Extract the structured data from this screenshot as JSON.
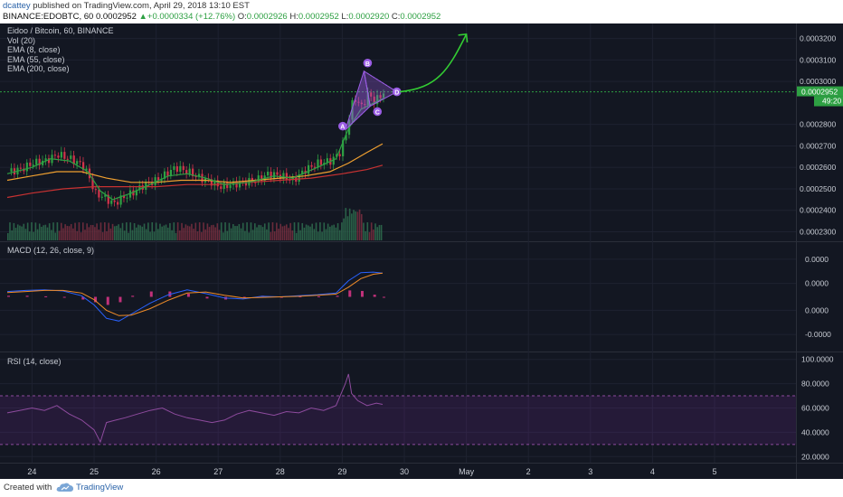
{
  "header": {
    "author": "dcattey",
    "published_text": "published on TradingView.com, April 29, 2018 13:10 EST",
    "symbol_line": "BINANCE:EDOBTC, 60",
    "last_price": "0.0002952",
    "change": "+0.0000334 (+12.76%)",
    "up_glyph": "▲",
    "o_label": "O:",
    "o_value": "0.0002926",
    "h_label": "H:",
    "h_value": "0.0002952",
    "l_label": "L:",
    "l_value": "0.0002920",
    "c_label": "C:",
    "c_value": "0.0002952"
  },
  "legend": {
    "main": [
      "Eidoo / Bitcoin, 60, BINANCE",
      "Vol (20)",
      "EMA (8, close)",
      "EMA (55, close)",
      "EMA (200, close)"
    ],
    "macd": "MACD (12, 26, close, 9)",
    "rsi": "RSI (14, close)"
  },
  "colors": {
    "background": "#131722",
    "bull": "#2ea043",
    "bear": "#d2334a",
    "ema8": "#2ea043",
    "ema55": "#f0a030",
    "ema200": "#c83232",
    "macd_line": "#2962ff",
    "signal_line": "#f08c28",
    "histogram": "#e0368a",
    "rsi_line": "#8e4b9e",
    "pattern": "#9b5de5",
    "forecast_arrow": "#33cc33",
    "price_line": "#2ea043"
  },
  "chart_data": [
    {
      "type": "candlestick",
      "title": "Eidoo / Bitcoin, 60, BINANCE",
      "x_ticks": [
        "24",
        "25",
        "26",
        "27",
        "28",
        "29",
        "30",
        "May",
        "2",
        "3",
        "4",
        "5"
      ],
      "y_ticks": [
        "0.0003200",
        "0.0003100",
        "0.0003000",
        "0.0002800",
        "0.0002700",
        "0.0002600",
        "0.0002500",
        "0.0002400",
        "0.0002300"
      ],
      "ylim": [
        0.000226,
        0.000327
      ],
      "last_price_label": "0.0002952",
      "countdown_label": "49:20",
      "price_path": [
        [
          23.6,
          0.000258
        ],
        [
          23.8,
          0.000259
        ],
        [
          24.0,
          0.000262
        ],
        [
          24.2,
          0.000263
        ],
        [
          24.4,
          0.000266
        ],
        [
          24.6,
          0.000264
        ],
        [
          24.8,
          0.000261
        ],
        [
          24.9,
          0.000256
        ],
        [
          25.0,
          0.000248
        ],
        [
          25.15,
          0.000246
        ],
        [
          25.3,
          0.000243
        ],
        [
          25.45,
          0.000246
        ],
        [
          25.6,
          0.000248
        ],
        [
          25.8,
          0.000252
        ],
        [
          26.0,
          0.000254
        ],
        [
          26.1,
          0.000256
        ],
        [
          26.3,
          0.00026
        ],
        [
          26.5,
          0.000258
        ],
        [
          26.7,
          0.000255
        ],
        [
          26.9,
          0.000253
        ],
        [
          27.0,
          0.000251
        ],
        [
          27.2,
          0.000252
        ],
        [
          27.4,
          0.000253
        ],
        [
          27.6,
          0.000254
        ],
        [
          27.8,
          0.000257
        ],
        [
          28.0,
          0.000256
        ],
        [
          28.2,
          0.000254
        ],
        [
          28.4,
          0.000259
        ],
        [
          28.6,
          0.000262
        ],
        [
          28.8,
          0.000263
        ],
        [
          28.95,
          0.000267
        ],
        [
          29.05,
          0.000276
        ],
        [
          29.1,
          0.000284
        ],
        [
          29.15,
          0.00029
        ],
        [
          29.2,
          0.000292
        ],
        [
          29.3,
          0.000288
        ],
        [
          29.4,
          0.000294
        ],
        [
          29.5,
          0.000291
        ],
        [
          29.6,
          0.000293
        ],
        [
          29.65,
          0.0002952
        ]
      ],
      "ema8": [
        [
          23.6,
          0.000257
        ],
        [
          24.0,
          0.00026
        ],
        [
          24.3,
          0.000264
        ],
        [
          24.6,
          0.000263
        ],
        [
          24.9,
          0.000258
        ],
        [
          25.1,
          0.000249
        ],
        [
          25.3,
          0.000245
        ],
        [
          25.6,
          0.000248
        ],
        [
          25.9,
          0.000252
        ],
        [
          26.2,
          0.000256
        ],
        [
          26.5,
          0.000257
        ],
        [
          26.8,
          0.000255
        ],
        [
          27.1,
          0.000252
        ],
        [
          27.5,
          0.000253
        ],
        [
          27.9,
          0.000256
        ],
        [
          28.2,
          0.000255
        ],
        [
          28.6,
          0.00026
        ],
        [
          28.9,
          0.000264
        ],
        [
          29.1,
          0.000278
        ],
        [
          29.3,
          0.000287
        ],
        [
          29.65,
          0.000292
        ]
      ],
      "ema55": [
        [
          23.6,
          0.000254
        ],
        [
          24.0,
          0.000256
        ],
        [
          24.4,
          0.000258
        ],
        [
          24.8,
          0.000258
        ],
        [
          25.2,
          0.000255
        ],
        [
          25.6,
          0.000253
        ],
        [
          26.0,
          0.000253
        ],
        [
          26.4,
          0.000254
        ],
        [
          26.8,
          0.000254
        ],
        [
          27.2,
          0.000253
        ],
        [
          27.6,
          0.000254
        ],
        [
          28.0,
          0.000255
        ],
        [
          28.4,
          0.000256
        ],
        [
          28.8,
          0.000258
        ],
        [
          29.1,
          0.000262
        ],
        [
          29.4,
          0.000267
        ],
        [
          29.65,
          0.000271
        ]
      ],
      "ema200": [
        [
          23.6,
          0.000246
        ],
        [
          24.0,
          0.000248
        ],
        [
          24.5,
          0.00025
        ],
        [
          25.0,
          0.000251
        ],
        [
          25.5,
          0.000251
        ],
        [
          26.0,
          0.000251
        ],
        [
          26.5,
          0.000252
        ],
        [
          27.0,
          0.000252
        ],
        [
          27.5,
          0.000253
        ],
        [
          28.0,
          0.000254
        ],
        [
          28.5,
          0.000255
        ],
        [
          29.0,
          0.000257
        ],
        [
          29.4,
          0.000259
        ],
        [
          29.65,
          0.000261
        ]
      ],
      "pattern_points": {
        "A": [
          29.05,
          0.0002775
        ],
        "B": [
          29.35,
          0.0003048
        ],
        "C": [
          29.45,
          0.0002885
        ],
        "D": [
          29.88,
          0.0002952
        ]
      },
      "forecast_target": [
        31.0,
        0.000322
      ]
    },
    {
      "type": "line",
      "title": "MACD (12, 26, close, 9)",
      "y_ticks": [
        "0.0000",
        "0.0000",
        "0.0000",
        "-0.0000"
      ],
      "ylim": [
        -10,
        10
      ],
      "x": [
        23.6,
        23.9,
        24.2,
        24.5,
        24.8,
        25.0,
        25.2,
        25.4,
        25.6,
        25.9,
        26.2,
        26.5,
        26.8,
        27.1,
        27.4,
        27.7,
        28.0,
        28.3,
        28.6,
        28.9,
        29.1,
        29.3,
        29.5,
        29.65
      ],
      "series": [
        {
          "values": [
            1.0,
            1.2,
            1.3,
            1.1,
            0.2,
            -1.5,
            -4.0,
            -4.5,
            -3.2,
            -1.2,
            0.4,
            1.3,
            0.6,
            -0.2,
            -0.4,
            0.1,
            0.0,
            0.2,
            0.4,
            0.7,
            3.0,
            4.5,
            4.6,
            4.4
          ]
        },
        {
          "values": [
            0.8,
            1.0,
            1.2,
            1.2,
            0.7,
            -0.5,
            -2.5,
            -3.5,
            -3.4,
            -2.2,
            -0.6,
            0.7,
            0.9,
            0.3,
            -0.2,
            -0.1,
            0.0,
            0.1,
            0.3,
            0.5,
            1.8,
            3.4,
            4.2,
            4.4
          ]
        }
      ],
      "histogram": [
        0.2,
        0.2,
        0.1,
        -0.1,
        -0.5,
        -1.0,
        -1.5,
        -1.0,
        0.2,
        1.0,
        1.0,
        0.6,
        -0.3,
        -0.5,
        -0.2,
        0.2,
        0.0,
        0.1,
        0.1,
        0.2,
        1.2,
        1.1,
        0.4,
        0.0
      ]
    },
    {
      "type": "line",
      "title": "RSI (14, close)",
      "y_ticks": [
        "100.0000",
        "80.0000",
        "60.0000",
        "40.0000",
        "20.0000"
      ],
      "ylim": [
        15,
        105
      ],
      "bands": [
        30,
        70
      ],
      "x": [
        23.6,
        23.8,
        24.0,
        24.2,
        24.4,
        24.6,
        24.8,
        25.0,
        25.1,
        25.2,
        25.35,
        25.5,
        25.7,
        25.9,
        26.1,
        26.3,
        26.5,
        26.7,
        26.9,
        27.1,
        27.3,
        27.5,
        27.7,
        27.9,
        28.1,
        28.3,
        28.5,
        28.7,
        28.9,
        29.05,
        29.1,
        29.15,
        29.25,
        29.4,
        29.55,
        29.65
      ],
      "values": [
        56,
        58,
        60,
        58,
        62,
        55,
        50,
        42,
        32,
        48,
        50,
        52,
        55,
        58,
        60,
        55,
        52,
        50,
        48,
        50,
        55,
        58,
        56,
        54,
        57,
        56,
        60,
        58,
        62,
        80,
        88,
        72,
        66,
        62,
        64,
        63
      ]
    }
  ]
}
